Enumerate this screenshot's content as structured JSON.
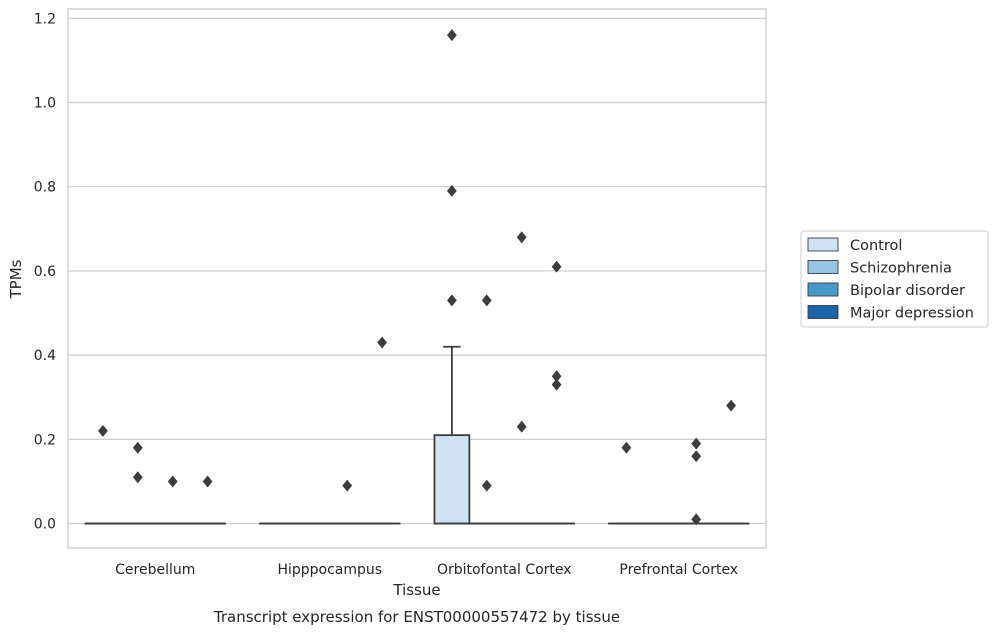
{
  "chart_data": {
    "type": "box",
    "caption": "Transcript expression for ENST00000557472 by tissue",
    "xlabel": "Tissue",
    "ylabel": "TPMs",
    "ylim": [
      -0.058,
      1.222
    ],
    "yticks": [
      0.0,
      0.2,
      0.4,
      0.6,
      0.8,
      1.0,
      1.2
    ],
    "ytick_labels": [
      "0.0",
      "0.2",
      "0.4",
      "0.6",
      "0.8",
      "1.0",
      "1.2"
    ],
    "grid": "horizontal",
    "legend_position": "right",
    "categories": [
      "Cerebellum",
      "Hipppocampus",
      "Orbitofontal Cortex",
      "Prefrontal Cortex"
    ],
    "series": [
      {
        "name": "Control",
        "color": "#d0e1f2"
      },
      {
        "name": "Schizophrenia",
        "color": "#94c4df"
      },
      {
        "name": "Bipolar disorder",
        "color": "#4a98c9"
      },
      {
        "name": "Major depression",
        "color": "#1764ab"
      }
    ],
    "boxes": [
      {
        "category": "Cerebellum",
        "series": "Control",
        "min": 0,
        "q1": 0,
        "median": 0,
        "q3": 0,
        "max": 0,
        "outliers": [
          0.22
        ]
      },
      {
        "category": "Cerebellum",
        "series": "Schizophrenia",
        "min": 0,
        "q1": 0,
        "median": 0,
        "q3": 0,
        "max": 0,
        "outliers": [
          0.18,
          0.11
        ]
      },
      {
        "category": "Cerebellum",
        "series": "Bipolar disorder",
        "min": 0,
        "q1": 0,
        "median": 0,
        "q3": 0,
        "max": 0,
        "outliers": [
          0.1
        ]
      },
      {
        "category": "Cerebellum",
        "series": "Major depression",
        "min": 0,
        "q1": 0,
        "median": 0,
        "q3": 0,
        "max": 0,
        "outliers": [
          0.1
        ]
      },
      {
        "category": "Hipppocampus",
        "series": "Control",
        "min": 0,
        "q1": 0,
        "median": 0,
        "q3": 0,
        "max": 0,
        "outliers": []
      },
      {
        "category": "Hipppocampus",
        "series": "Schizophrenia",
        "min": 0,
        "q1": 0,
        "median": 0,
        "q3": 0,
        "max": 0,
        "outliers": []
      },
      {
        "category": "Hipppocampus",
        "series": "Bipolar disorder",
        "min": 0,
        "q1": 0,
        "median": 0,
        "q3": 0,
        "max": 0,
        "outliers": [
          0.09
        ]
      },
      {
        "category": "Hipppocampus",
        "series": "Major depression",
        "min": 0,
        "q1": 0,
        "median": 0,
        "q3": 0,
        "max": 0,
        "outliers": [
          0.43
        ]
      },
      {
        "category": "Orbitofontal Cortex",
        "series": "Control",
        "min": 0,
        "q1": 0,
        "median": 0,
        "q3": 0.21,
        "max": 0.42,
        "outliers": [
          1.16,
          0.79,
          0.53
        ]
      },
      {
        "category": "Orbitofontal Cortex",
        "series": "Schizophrenia",
        "min": 0,
        "q1": 0,
        "median": 0,
        "q3": 0,
        "max": 0,
        "outliers": [
          0.53,
          0.09
        ]
      },
      {
        "category": "Orbitofontal Cortex",
        "series": "Bipolar disorder",
        "min": 0,
        "q1": 0,
        "median": 0,
        "q3": 0,
        "max": 0,
        "outliers": [
          0.68,
          0.23
        ]
      },
      {
        "category": "Orbitofontal Cortex",
        "series": "Major depression",
        "min": 0,
        "q1": 0,
        "median": 0,
        "q3": 0,
        "max": 0,
        "outliers": [
          0.61,
          0.35,
          0.33
        ]
      },
      {
        "category": "Prefrontal Cortex",
        "series": "Control",
        "min": 0,
        "q1": 0,
        "median": 0,
        "q3": 0,
        "max": 0,
        "outliers": [
          0.18
        ]
      },
      {
        "category": "Prefrontal Cortex",
        "series": "Schizophrenia",
        "min": 0,
        "q1": 0,
        "median": 0,
        "q3": 0,
        "max": 0,
        "outliers": []
      },
      {
        "category": "Prefrontal Cortex",
        "series": "Bipolar disorder",
        "min": 0,
        "q1": 0,
        "median": 0,
        "q3": 0,
        "max": 0,
        "outliers": [
          0.19,
          0.16,
          0.01
        ]
      },
      {
        "category": "Prefrontal Cortex",
        "series": "Major depression",
        "min": 0,
        "q1": 0,
        "median": 0,
        "q3": 0,
        "max": 0,
        "outliers": [
          0.28
        ]
      }
    ]
  },
  "colors": {
    "grid": "#cccccc",
    "frame": "#cccccc",
    "stroke": "#3d3d3d",
    "outlier": "#3d3d3d"
  }
}
